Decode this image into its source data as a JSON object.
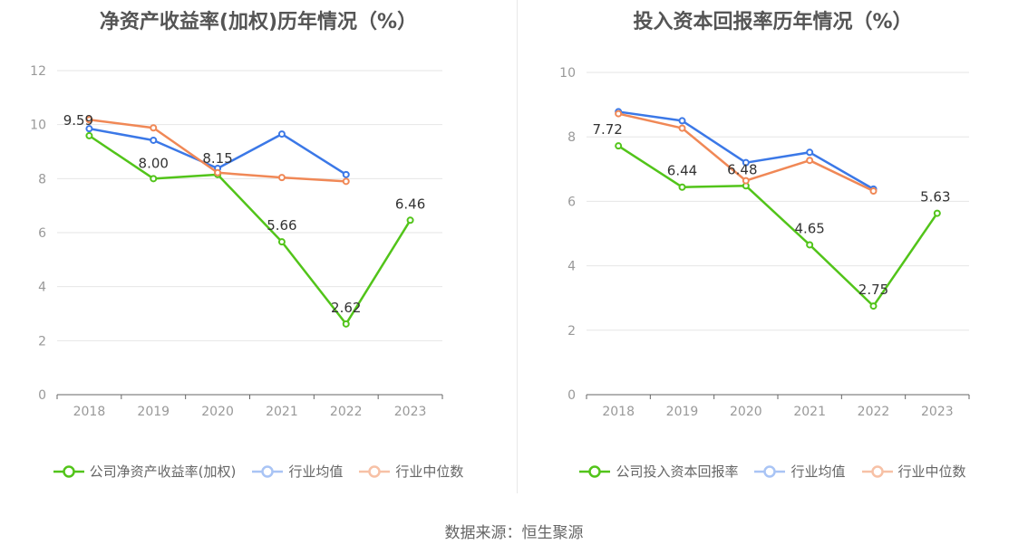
{
  "source_text": "数据来源：恒生聚源",
  "colors": {
    "company": "#52c41a",
    "industry_avg": "#3b78e7",
    "industry_median": "#f08856"
  },
  "chart_data": [
    {
      "type": "line",
      "title": "净资产收益率(加权)历年情况（%）",
      "categories": [
        "2018",
        "2019",
        "2020",
        "2021",
        "2022",
        "2023"
      ],
      "ylim": [
        0,
        12
      ],
      "yticks": [
        0,
        2,
        4,
        6,
        8,
        10,
        12
      ],
      "grid": true,
      "legend_position": "bottom",
      "series": [
        {
          "name": "公司净资产收益率(加权)",
          "values": [
            9.59,
            8.0,
            8.15,
            5.66,
            2.62,
            6.46
          ],
          "labels": [
            "9.59",
            "8.00",
            "8.15",
            "5.66",
            "2.62",
            "6.46"
          ],
          "color": "#52c41a"
        },
        {
          "name": "行业均值",
          "values": [
            9.85,
            9.42,
            8.38,
            9.65,
            8.15,
            null
          ],
          "color": "#3b78e7"
        },
        {
          "name": "行业中位数",
          "values": [
            10.18,
            9.88,
            8.22,
            8.04,
            7.9,
            null
          ],
          "color": "#f08856"
        }
      ]
    },
    {
      "type": "line",
      "title": "投入资本回报率历年情况（%）",
      "categories": [
        "2018",
        "2019",
        "2020",
        "2021",
        "2022",
        "2023"
      ],
      "ylim": [
        0,
        10
      ],
      "yticks": [
        0,
        2,
        4,
        6,
        8,
        10
      ],
      "grid": true,
      "legend_position": "bottom",
      "series": [
        {
          "name": "公司投入资本回报率",
          "values": [
            7.72,
            6.44,
            6.48,
            4.65,
            2.75,
            5.63
          ],
          "labels": [
            "7.72",
            "6.44",
            "6.48",
            "4.65",
            "2.75",
            "5.63"
          ],
          "color": "#52c41a"
        },
        {
          "name": "行业均值",
          "values": [
            8.78,
            8.5,
            7.2,
            7.52,
            6.38,
            null
          ],
          "color": "#3b78e7"
        },
        {
          "name": "行业中位数",
          "values": [
            8.72,
            8.27,
            6.64,
            7.27,
            6.32,
            null
          ],
          "color": "#f08856"
        }
      ]
    }
  ]
}
